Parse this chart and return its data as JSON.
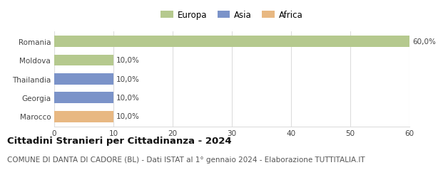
{
  "categories": [
    "Romania",
    "Moldova",
    "Thailandia",
    "Georgia",
    "Marocco"
  ],
  "values": [
    60.0,
    10.0,
    10.0,
    10.0,
    10.0
  ],
  "colors": [
    "#b5c98e",
    "#b5c98e",
    "#7b93c9",
    "#7b93c9",
    "#e8b882"
  ],
  "bar_labels": [
    "60,0%",
    "10,0%",
    "10,0%",
    "10,0%",
    "10,0%"
  ],
  "legend_labels": [
    "Europa",
    "Asia",
    "Africa"
  ],
  "legend_colors": [
    "#b5c98e",
    "#7b93c9",
    "#e8b882"
  ],
  "xlim": [
    0,
    60
  ],
  "xticks": [
    0,
    10,
    20,
    30,
    40,
    50,
    60
  ],
  "title": "Cittadini Stranieri per Cittadinanza - 2024",
  "subtitle": "COMUNE DI DANTA DI CADORE (BL) - Dati ISTAT al 1° gennaio 2024 - Elaborazione TUTTITALIA.IT",
  "background_color": "#ffffff",
  "grid_color": "#dddddd",
  "title_fontsize": 9.5,
  "subtitle_fontsize": 7.5,
  "bar_label_fontsize": 7.5,
  "tick_fontsize": 7.5,
  "legend_fontsize": 8.5
}
